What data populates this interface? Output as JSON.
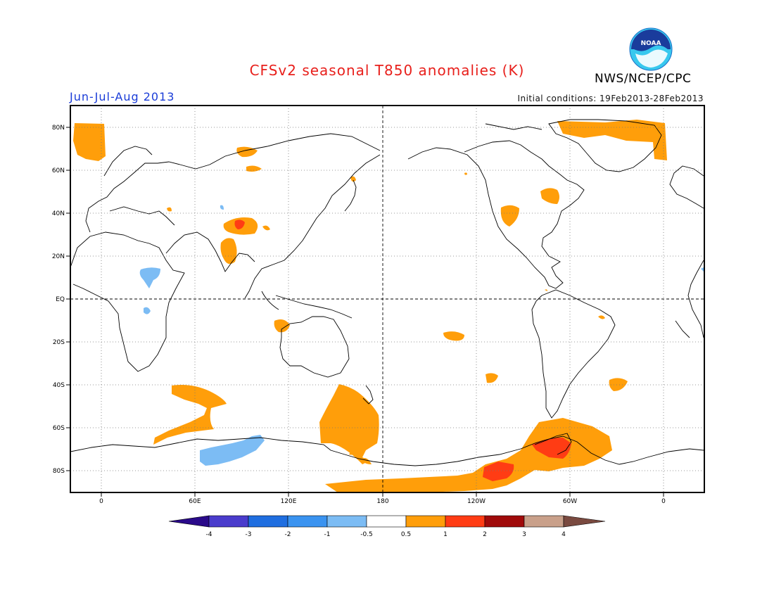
{
  "header": {
    "title": "CFSv2 seasonal T850 anomalies (K)",
    "org": "NWS/NCEP/CPC",
    "logo_text": "NOAA",
    "season": "Jun-Jul-Aug 2013",
    "initial_conditions": "Initial conditions: 19Feb2013-28Feb2013"
  },
  "map": {
    "lat_labels": [
      "80N",
      "60N",
      "40N",
      "20N",
      "EQ",
      "20S",
      "40S",
      "60S",
      "80S"
    ],
    "lon_labels": [
      "0",
      "60E",
      "120E",
      "180",
      "120W",
      "60W",
      "0"
    ],
    "dashed_lines": [
      "EQ",
      "180"
    ]
  },
  "colorbar": {
    "units": "K",
    "tick_labels": [
      "-4",
      "-3",
      "-2",
      "-1",
      "-0.5",
      "0.5",
      "1",
      "2",
      "3",
      "4"
    ],
    "colors": [
      "#2a0a8a",
      "#4a3ccc",
      "#1f6ee0",
      "#3a93f0",
      "#7cbcf4",
      "#ffffff",
      "#ff9e0a",
      "#ff3c14",
      "#a00a0a",
      "#c9a08a",
      "#7a4a40"
    ]
  },
  "palette": {
    "orange": "#ff9e0a",
    "red": "#ff3c14",
    "light_blue": "#7cbcf4",
    "title_red": "#e8201c",
    "label_blue": "#1a3cd8"
  }
}
